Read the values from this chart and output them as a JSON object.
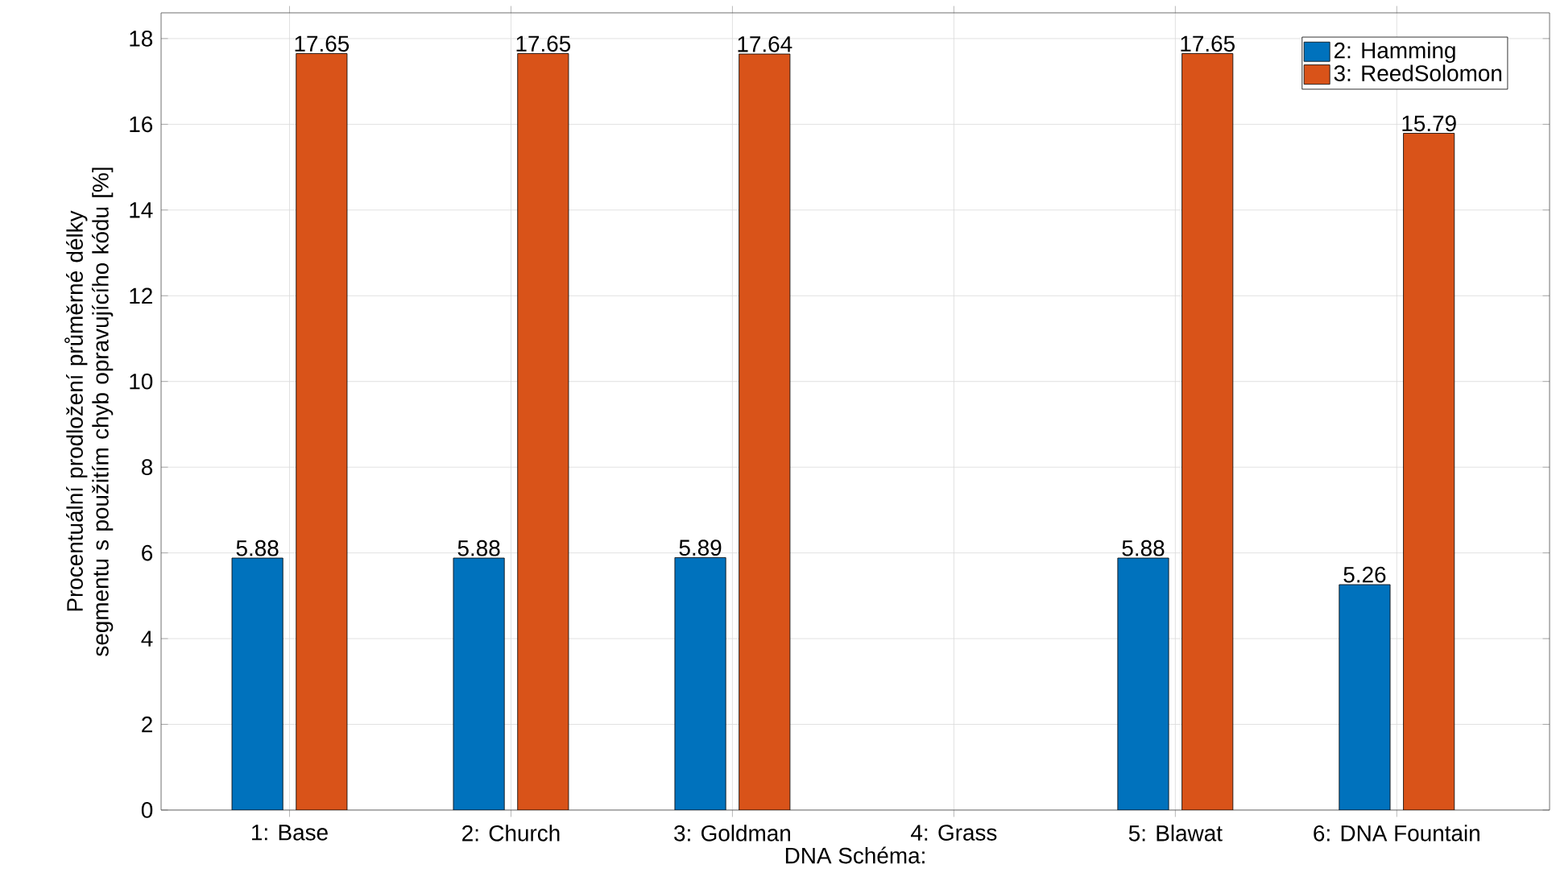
{
  "chart_data": {
    "type": "bar",
    "xlabel": "DNA Schéma:",
    "ylabel": "Procentuální prodložení průměrné délky segmentu s použitím chyb opravujícího kódu [%]",
    "categories": [
      "1: Base",
      "2: Church",
      "3: Goldman",
      "4: Grass",
      "5: Blawat",
      "6: DNA Fountain"
    ],
    "series": [
      {
        "name": "2: Hamming",
        "color": "#0072bd",
        "values": [
          5.88,
          5.88,
          5.89,
          null,
          5.88,
          5.26
        ]
      },
      {
        "name": "3: ReedSolomon",
        "color": "#d95319",
        "values": [
          17.65,
          17.65,
          17.64,
          null,
          17.65,
          15.79
        ]
      }
    ],
    "ylim": [
      0,
      18.6
    ],
    "yticks": [
      0,
      2,
      4,
      6,
      8,
      10,
      12,
      14,
      16,
      18
    ],
    "grid": true,
    "legend": "top right",
    "data_labels": true
  }
}
